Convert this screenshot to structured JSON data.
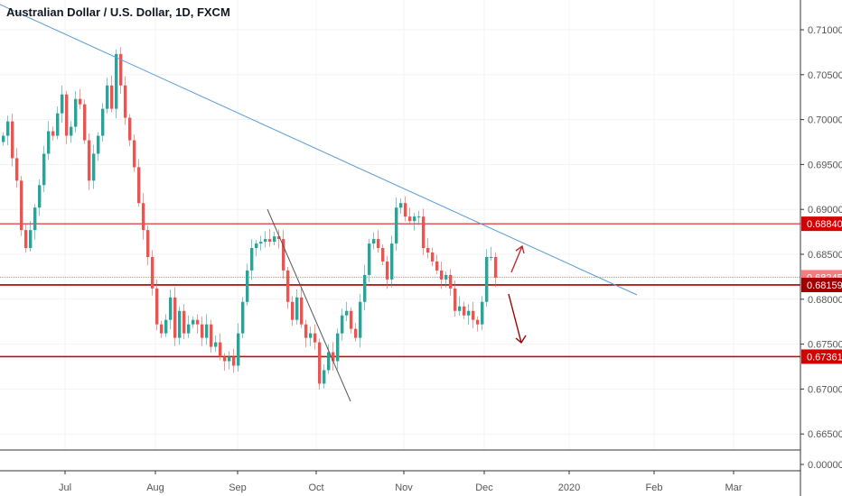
{
  "header": {
    "title": "Australian Dollar / U.S. Dollar, 1D, FXCM"
  },
  "colors": {
    "up": "#26a69a",
    "down": "#ef5350",
    "trend_blue": "#5b9bd5",
    "trend_black": "#555555",
    "level": "#d50000",
    "level_dark": "#a00000",
    "current": "#f77c80"
  },
  "chart_data": {
    "type": "candlestick",
    "title": "Australian Dollar / U.S. Dollar, 1D, FXCM",
    "ylim": [
      0.6617,
      0.7133
    ],
    "y_ticks": [
      "0.71000",
      "0.70500",
      "0.70000",
      "0.69500",
      "0.69000",
      "0.68500",
      "0.68000",
      "0.67500",
      "0.67000",
      "0.66500"
    ],
    "y_tick_values": [
      0.71,
      0.705,
      0.7,
      0.695,
      0.69,
      0.685,
      0.68,
      0.675,
      0.67,
      0.665
    ],
    "lower_pane_tick": "0.00000",
    "x_ticks": [
      "Jul",
      "Aug",
      "Sep",
      "Oct",
      "Nov",
      "Dec",
      "2020",
      "Feb",
      "Mar"
    ],
    "first_open": 0.6975,
    "closes": [
      0.6982,
      0.6998,
      0.6957,
      0.6932,
      0.6877,
      0.6857,
      0.6877,
      0.6902,
      0.6927,
      0.6962,
      0.6987,
      0.6982,
      0.7007,
      0.7028,
      0.6982,
      0.6992,
      0.7023,
      0.7017,
      0.6977,
      0.6932,
      0.6962,
      0.6982,
      0.7012,
      0.7038,
      0.7012,
      0.7073,
      0.7038,
      0.7002,
      0.6977,
      0.6947,
      0.6907,
      0.6877,
      0.6847,
      0.6812,
      0.6772,
      0.6762,
      0.6777,
      0.6802,
      0.6757,
      0.6787,
      0.6762,
      0.6772,
      0.6777,
      0.6772,
      0.6757,
      0.6772,
      0.6747,
      0.6752,
      0.6736,
      0.6731,
      0.6736,
      0.6726,
      0.6762,
      0.6797,
      0.6832,
      0.6857,
      0.6862,
      0.6864,
      0.6867,
      0.6864,
      0.687,
      0.6867,
      0.6832,
      0.6797,
      0.6777,
      0.6802,
      0.6772,
      0.6757,
      0.6762,
      0.6752,
      0.6706,
      0.6721,
      0.6741,
      0.6731,
      0.6762,
      0.6782,
      0.6787,
      0.6767,
      0.6757,
      0.6797,
      0.6827,
      0.6862,
      0.6867,
      0.6857,
      0.6842,
      0.6822,
      0.6862,
      0.6902,
      0.6907,
      0.6892,
      0.6887,
      0.6892,
      0.6892,
      0.6857,
      0.6852,
      0.6842,
      0.6832,
      0.6822,
      0.6827,
      0.6812,
      0.6787,
      0.6792,
      0.6782,
      0.6787,
      0.6777,
      0.6772,
      0.6797,
      0.6847,
      0.6847,
      0.6824
    ],
    "levels": [
      {
        "label": "0.68840",
        "value": 0.6884,
        "style": "thin"
      },
      {
        "label": "0.68245",
        "value": 0.68245,
        "style": "current"
      },
      {
        "label": "0.68159",
        "value": 0.68159,
        "style": "dark"
      },
      {
        "label": "0.67361",
        "value": 0.67361,
        "style": "thick"
      }
    ]
  }
}
